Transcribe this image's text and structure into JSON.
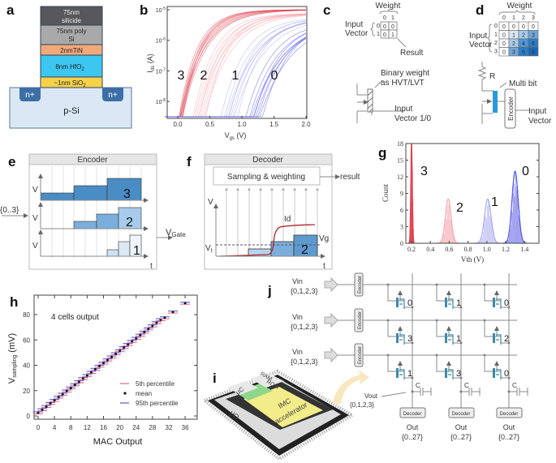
{
  "panels": {
    "a": {
      "label": "a",
      "layers": [
        "75nm",
        "silicide",
        "75nm poly",
        "Si",
        "2nmTiN",
        "8nm HfO",
        "2",
        "~1nm SiO",
        "2"
      ],
      "doping": "n+",
      "substrate": "p-Si",
      "colors": {
        "silicide": "#58585c",
        "poly": "#a9a9aa",
        "tin": "#f2a97a",
        "hfo2": "#3cc6f0",
        "sio2": "#f6d24a",
        "sub": "#d9e8f4",
        "nplus": "#3d6fa6"
      }
    },
    "b": {
      "label": "b",
      "xlabel": "V",
      "xlabel_sub": "gs",
      "xlabel_unit": " (V)",
      "ylabel": "I",
      "ylabel_sub": "ds",
      "ylabel_unit": " (A)",
      "state_labels": [
        "3",
        "2",
        "1",
        "0"
      ]
    },
    "c": {
      "label": "c",
      "weight": "Weight",
      "cols": [
        "0",
        "1"
      ],
      "rows": [
        "0",
        "1"
      ],
      "matrix": [
        [
          "0",
          "0"
        ],
        [
          "0",
          "1"
        ]
      ],
      "input_vector": [
        "Input",
        "Vector"
      ],
      "result": "Result",
      "binary_weight": [
        "Binary weight",
        "as HVT/LVT"
      ],
      "input_vector_10": [
        "Input",
        "Vector 1/0"
      ]
    },
    "d": {
      "label": "d",
      "weight": "Weight",
      "cols": [
        "0",
        "1",
        "2",
        "3"
      ],
      "rows": [
        "0",
        "1",
        "2",
        "3"
      ],
      "matrix": [
        [
          "0",
          "0",
          "0",
          "0"
        ],
        [
          "0",
          "1",
          "2",
          "3"
        ],
        [
          "0",
          "2",
          "4",
          "6"
        ],
        [
          "0",
          "3",
          "6",
          "9"
        ]
      ],
      "input_vector": [
        "Input",
        "Vector"
      ],
      "resistor": "R",
      "multi_bit": "Multi bit",
      "encoder": "Encoder",
      "input_vector2": [
        "Input",
        "Vector"
      ]
    },
    "e": {
      "label": "e",
      "title": "Encoder",
      "input": "{0..3}",
      "axis_v": "V",
      "axis_t": "t",
      "output": "V",
      "output_sub": "Gate",
      "row_values": [
        "3",
        "2",
        "1"
      ]
    },
    "f": {
      "label": "f",
      "title": "Decoder",
      "sampling": "Sampling & weighting",
      "result": "result",
      "axis_v": "V",
      "axis_t": "t",
      "vt": "V",
      "vt_sub": "t",
      "id": "Id",
      "vg": "Vg",
      "value": "2"
    },
    "g": {
      "label": "g"
    },
    "h": {
      "label": "h",
      "annotation": "4 cells output"
    },
    "i": {
      "label": "i",
      "blocks": {
        "uc": "µC",
        "ram": "RAM",
        "rom": "ROM",
        "io": "I/O",
        "imc": "IMC",
        "accel": "accelerator"
      }
    },
    "j": {
      "label": "j",
      "vin": "Vin",
      "vin_set": "{0,1,2,3}",
      "encoder": "Encoder",
      "decoder": "Decoder",
      "cap": "C",
      "vout": "Vout",
      "vout_set": "{0,1,2,3}",
      "out": "Out",
      "out_set": "{0..27}",
      "weights": [
        [
          "0",
          "1",
          "0"
        ],
        [
          "3",
          "1",
          "2"
        ],
        [
          "1",
          "3",
          "0"
        ]
      ]
    }
  },
  "chart_data": [
    {
      "id": "b",
      "type": "line",
      "title": "",
      "xlabel": "Vgs (V)",
      "ylabel": "Ids (A)",
      "yscale": "log",
      "xlim": [
        -0.2,
        2.0
      ],
      "ylim": [
        3e-09,
        1e-05
      ],
      "xticks": [
        "0.0",
        "0.5",
        "1.0",
        "1.5",
        "2.0"
      ],
      "yticks": [
        "10-5",
        "10-6",
        "10-7",
        "10-8"
      ],
      "series": [
        {
          "name": "3",
          "color": "#e0404e",
          "onset_v": 0.05
        },
        {
          "name": "2",
          "color": "#f4a3aa",
          "onset_v": 0.33
        },
        {
          "name": "1",
          "color": "#a9aaf0",
          "onset_v": 0.75
        },
        {
          "name": "0",
          "color": "#5557e0",
          "onset_v": 1.12
        }
      ]
    },
    {
      "id": "g",
      "type": "bar",
      "title": "",
      "xlabel": "Vth (V)",
      "ylabel": "Count",
      "xlim": [
        0.14,
        1.55
      ],
      "ylim": [
        0,
        18
      ],
      "xticks": [
        "0.2",
        "0.4",
        "0.6",
        "0.8",
        "1.0",
        "1.2",
        "1.4"
      ],
      "yticks": [
        "0",
        "3",
        "6",
        "9",
        "12",
        "15",
        "18"
      ],
      "series": [
        {
          "name": "3",
          "color": "#e0404e",
          "mean": 0.2,
          "sd": 0.008,
          "peak": 18
        },
        {
          "name": "2",
          "color": "#f4a3aa",
          "mean": 0.59,
          "sd": 0.03,
          "peak": 8
        },
        {
          "name": "1",
          "color": "#a9aaf0",
          "mean": 1.01,
          "sd": 0.035,
          "peak": 8
        },
        {
          "name": "0",
          "color": "#5557e0",
          "mean": 1.3,
          "sd": 0.033,
          "peak": 13
        }
      ]
    },
    {
      "id": "h",
      "type": "scatter",
      "title": "",
      "xlabel": "MAC Output",
      "ylabel": "V",
      "ylabel_sub": "sampling",
      "ylabel_unit": " (mV)",
      "xlim": [
        -1,
        38
      ],
      "ylim": [
        -3,
        92
      ],
      "xticks": [
        "0",
        "4",
        "8",
        "12",
        "16",
        "20",
        "24",
        "28",
        "32",
        "36"
      ],
      "yticks": [
        "0",
        "20",
        "40",
        "60",
        "80"
      ],
      "legend": [
        "5th percentile",
        "mean",
        "95th percentile"
      ],
      "legend_position": "bottom-right",
      "x": [
        0,
        1,
        2,
        3,
        4,
        5,
        6,
        7,
        8,
        9,
        10,
        11,
        12,
        13,
        14,
        15,
        16,
        17,
        18,
        19,
        20,
        21,
        22,
        23,
        24,
        25,
        26,
        27,
        28,
        29,
        30,
        31,
        33,
        36
      ],
      "mean": [
        2.5,
        5,
        7.4,
        9.9,
        12.3,
        14.8,
        17.2,
        19.7,
        22.1,
        24.6,
        27,
        29.5,
        31.9,
        34.4,
        36.8,
        39.3,
        41.7,
        44.2,
        46.6,
        49.1,
        51.5,
        54,
        56.4,
        58.9,
        61.3,
        63.8,
        66.2,
        68.7,
        71.1,
        73.6,
        76,
        77.5,
        82,
        89
      ],
      "colors": {
        "p5": "#e04a70",
        "mean": "#111111",
        "p95": "#3a3ad0"
      }
    }
  ]
}
